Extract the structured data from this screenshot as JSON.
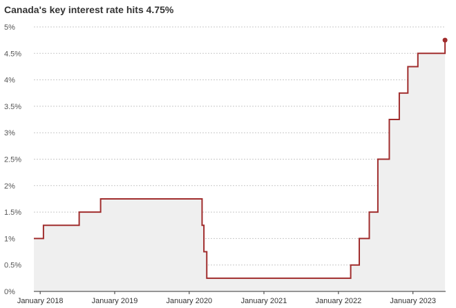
{
  "chart_data": {
    "type": "line",
    "title": "Canada's key interest rate hits 4.75%",
    "xlabel": "",
    "ylabel": "",
    "ylim": [
      0,
      5
    ],
    "yticks": [
      "0%",
      "0.5%",
      "1%",
      "1.5%",
      "2%",
      "2.5%",
      "3%",
      "3.5%",
      "4%",
      "4.5%",
      "5%"
    ],
    "xticks": [
      "January 2018",
      "January 2019",
      "January 2020",
      "January 2021",
      "January 2022",
      "January 2023"
    ],
    "grid": true,
    "style": "step",
    "area_fill": true,
    "series": [
      {
        "color": "#a02c2c",
        "fill_color": "#efefef",
        "points": [
          {
            "x": "2017-09-06",
            "y": 1.0
          },
          {
            "x": "2018-01-17",
            "y": 1.25
          },
          {
            "x": "2018-07-11",
            "y": 1.5
          },
          {
            "x": "2018-10-24",
            "y": 1.75
          },
          {
            "x": "2020-03-04",
            "y": 1.25
          },
          {
            "x": "2020-03-13",
            "y": 0.75
          },
          {
            "x": "2020-03-27",
            "y": 0.25
          },
          {
            "x": "2022-03-02",
            "y": 0.5
          },
          {
            "x": "2022-04-13",
            "y": 1.0
          },
          {
            "x": "2022-06-01",
            "y": 1.5
          },
          {
            "x": "2022-07-13",
            "y": 2.5
          },
          {
            "x": "2022-09-07",
            "y": 3.25
          },
          {
            "x": "2022-10-26",
            "y": 3.75
          },
          {
            "x": "2022-12-07",
            "y": 4.25
          },
          {
            "x": "2023-01-25",
            "y": 4.5
          },
          {
            "x": "2023-06-07",
            "y": 4.75
          }
        ]
      }
    ]
  }
}
